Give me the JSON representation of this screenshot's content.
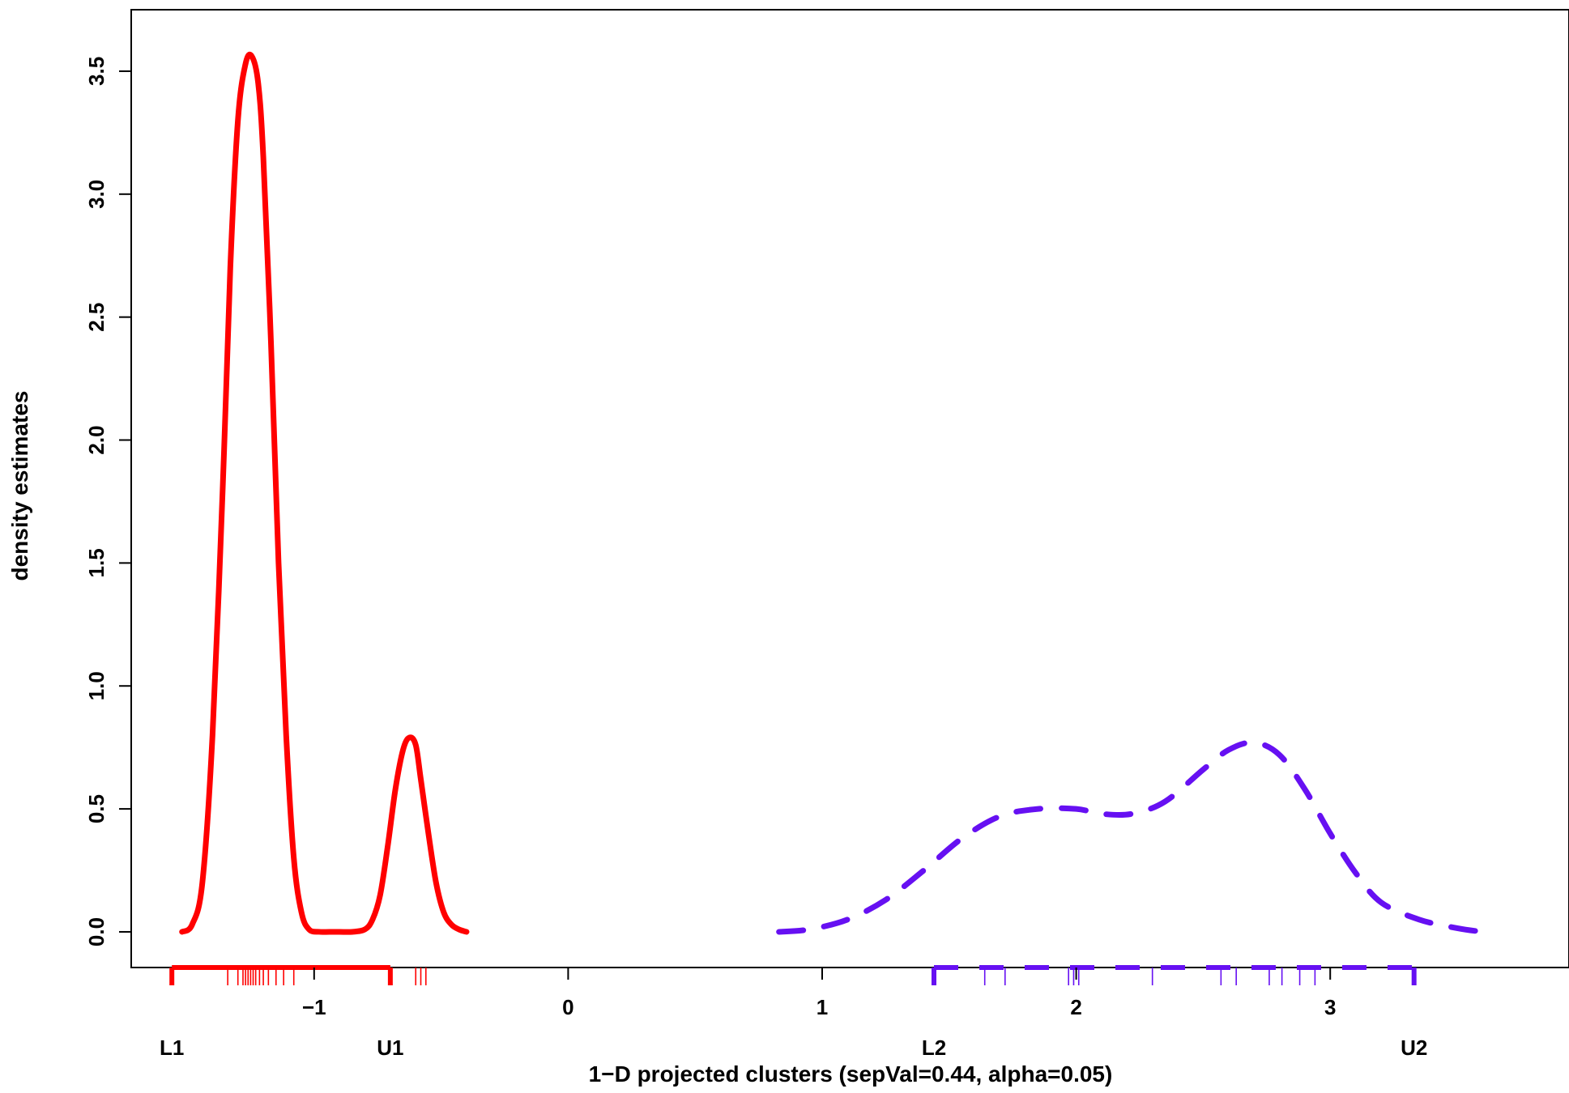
{
  "chart_data": {
    "type": "line",
    "xlabel": "1−D projected clusters (sepVal=0.44, alpha=0.05)",
    "ylabel": "density estimates",
    "xlim": [
      -1.72,
      3.94
    ],
    "ylim": [
      -0.145,
      3.75
    ],
    "x_ticks": [
      -1,
      0,
      1,
      2,
      3
    ],
    "x_tick_labels": [
      "−1",
      "0",
      "1",
      "2",
      "3"
    ],
    "y_ticks": [
      0.0,
      0.5,
      1.0,
      1.5,
      2.0,
      2.5,
      3.0,
      3.5
    ],
    "y_tick_labels": [
      "0.0",
      "0.5",
      "1.0",
      "1.5",
      "2.0",
      "2.5",
      "3.0",
      "3.5"
    ],
    "grid": false,
    "legend": "none",
    "series": [
      {
        "color": "#ff0000",
        "line_style": "solid",
        "x": [
          -1.52,
          -1.48,
          -1.44,
          -1.4,
          -1.36,
          -1.33,
          -1.3,
          -1.27,
          -1.245,
          -1.22,
          -1.2,
          -1.17,
          -1.14,
          -1.11,
          -1.08,
          -1.05,
          -1.02,
          -0.98,
          -0.94,
          -0.9,
          -0.85,
          -0.8,
          -0.77,
          -0.74,
          -0.71,
          -0.68,
          -0.65,
          -0.625,
          -0.6,
          -0.58,
          -0.55,
          -0.52,
          -0.49,
          -0.46,
          -0.43,
          -0.4
        ],
        "y": [
          0.0,
          0.03,
          0.2,
          0.8,
          1.8,
          2.7,
          3.3,
          3.53,
          3.56,
          3.45,
          3.15,
          2.4,
          1.5,
          0.8,
          0.3,
          0.08,
          0.01,
          0.0,
          0.0,
          0.0,
          0.0,
          0.01,
          0.05,
          0.15,
          0.35,
          0.58,
          0.74,
          0.79,
          0.76,
          0.62,
          0.4,
          0.2,
          0.08,
          0.03,
          0.01,
          0.0
        ]
      },
      {
        "color": "#6610f2",
        "line_style": "dashed",
        "x": [
          0.83,
          0.95,
          1.1,
          1.25,
          1.4,
          1.55,
          1.7,
          1.85,
          2.0,
          2.1,
          2.22,
          2.35,
          2.5,
          2.6,
          2.7,
          2.8,
          2.9,
          3.0,
          3.1,
          3.2,
          3.35,
          3.5,
          3.6
        ],
        "y": [
          0.0,
          0.01,
          0.05,
          0.13,
          0.25,
          0.38,
          0.47,
          0.5,
          0.5,
          0.48,
          0.48,
          0.53,
          0.66,
          0.74,
          0.77,
          0.72,
          0.58,
          0.4,
          0.24,
          0.12,
          0.05,
          0.015,
          0.0
        ]
      }
    ],
    "rugs": [
      {
        "color": "#ff0000",
        "x": [
          -1.34,
          -1.3,
          -1.28,
          -1.27,
          -1.26,
          -1.25,
          -1.24,
          -1.23,
          -1.215,
          -1.2,
          -1.18,
          -1.15,
          -1.12,
          -1.08,
          -0.6,
          -0.58,
          -0.56
        ]
      },
      {
        "color": "#6610f2",
        "x": [
          1.64,
          1.72,
          1.97,
          1.99,
          2.01,
          2.3,
          2.57,
          2.63,
          2.76,
          2.81,
          2.88,
          2.94
        ]
      }
    ],
    "bounds": [
      {
        "label": "L1",
        "x": -1.56,
        "color": "#ff0000"
      },
      {
        "label": "U1",
        "x": -0.7,
        "color": "#ff0000"
      },
      {
        "label": "L2",
        "x": 1.44,
        "color": "#6610f2"
      },
      {
        "label": "U2",
        "x": 3.33,
        "color": "#6610f2"
      }
    ]
  }
}
